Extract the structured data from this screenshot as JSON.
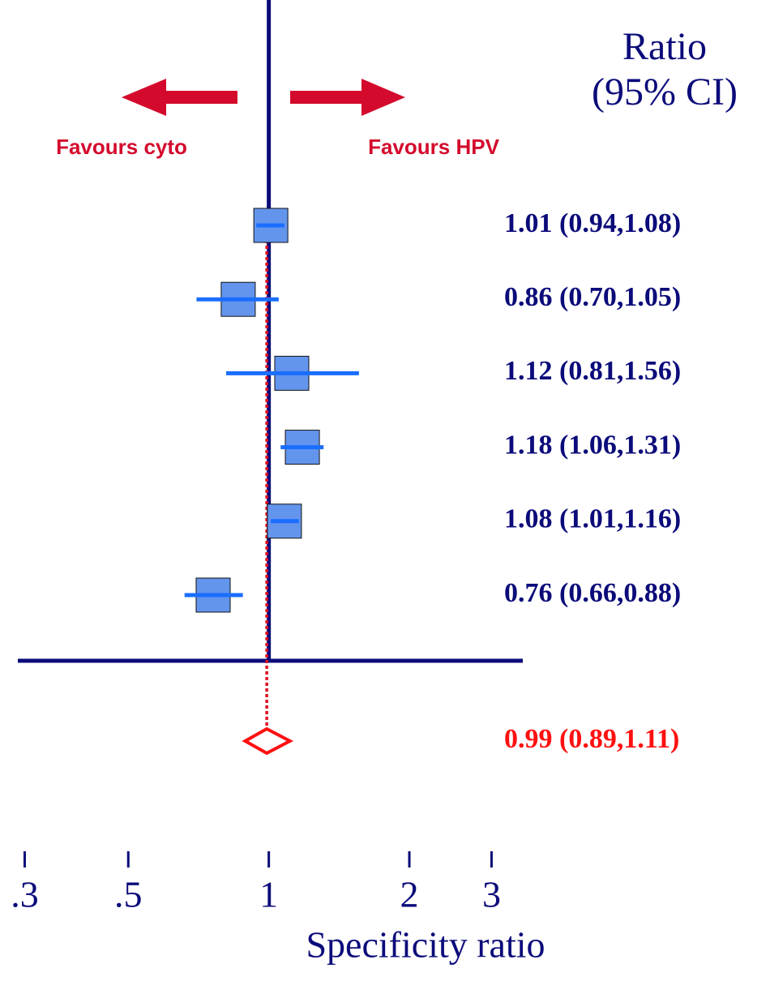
{
  "chart_data": {
    "type": "forest",
    "header": [
      "Ratio",
      "(95% CI)"
    ],
    "annotations": [
      "Favours cyto",
      "Favours HPV"
    ],
    "xlabel": "Specificity ratio",
    "xscale": "log",
    "xlim": [
      0.29,
      3.5
    ],
    "xticks": [
      {
        "value": 0.3,
        "label": ".3"
      },
      {
        "value": 0.5,
        "label": ".5"
      },
      1,
      2,
      3
    ],
    "estimates": [
      1.01,
      0.86,
      1.12,
      1.18,
      1.08,
      0.76
    ],
    "lower": [
      0.94,
      0.7,
      0.81,
      1.06,
      1.01,
      0.66
    ],
    "upper": [
      1.08,
      1.05,
      1.56,
      1.31,
      1.16,
      0.88
    ],
    "value_labels": [
      "1.01 (0.94,1.08)",
      "0.86 (0.70,1.05)",
      "1.12 (0.81,1.56)",
      "1.18 (1.06,1.31)",
      "1.08 (1.01,1.16)",
      "0.76 (0.66,0.88)"
    ],
    "pooled": {
      "estimate": 0.99,
      "lower": 0.89,
      "upper": 1.11,
      "value_label": "0.99 (0.89,1.11)"
    },
    "colors": {
      "axis": "#0b0b7a",
      "box": "#6495ed",
      "ci": "#1a6eff",
      "pooled": "#ff1010",
      "arrow": "#d40a2c"
    }
  }
}
